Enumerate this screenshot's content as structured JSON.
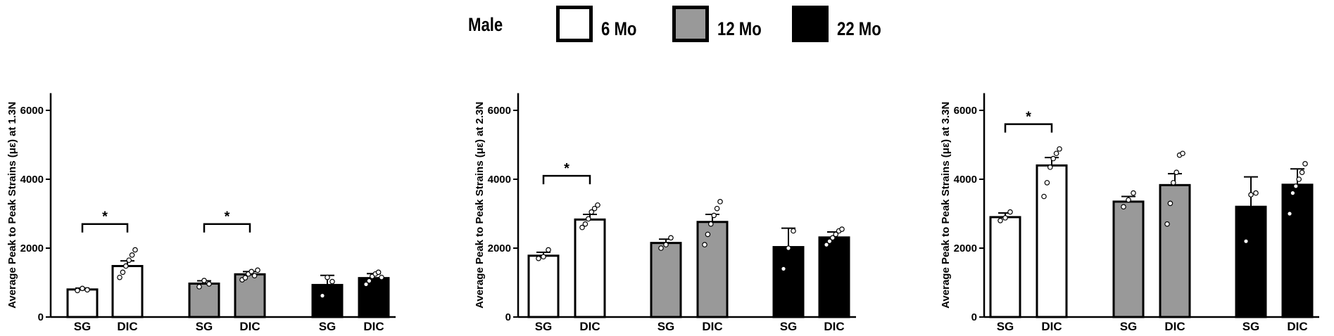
{
  "legend": {
    "title": "Male",
    "items": [
      {
        "label": "6 Mo",
        "color": "#ffffff"
      },
      {
        "label": "12 Mo",
        "color": "#999999"
      },
      {
        "label": "22 Mo",
        "color": "#000000"
      }
    ]
  },
  "chart_data": [
    {
      "type": "bar",
      "ylabel": "Average Peak to Peak Strains (με) at 1.3N",
      "ylim": [
        0,
        6500
      ],
      "yticks": [
        0,
        2000,
        4000,
        6000
      ],
      "categories": [
        "SG",
        "DIC",
        "SG",
        "DIC",
        "SG",
        "DIC"
      ],
      "group_of_bar": [
        "6 Mo",
        "6 Mo",
        "12 Mo",
        "12 Mo",
        "22 Mo",
        "22 Mo"
      ],
      "values": [
        800,
        1480,
        970,
        1240,
        930,
        1130
      ],
      "errors": [
        40,
        150,
        80,
        80,
        280,
        130
      ],
      "points": [
        [
          770,
          830,
          790
        ],
        [
          1150,
          1300,
          1480,
          1650,
          1800,
          1950
        ],
        [
          880,
          1060,
          960
        ],
        [
          1080,
          1140,
          1250,
          1320,
          1200,
          1360
        ],
        [
          620,
          1150,
          1030
        ],
        [
          950,
          1050,
          1180,
          1250,
          1300,
          1150
        ]
      ],
      "significance": [
        {
          "bars": [
            0,
            1
          ],
          "label": "*",
          "y": 2700
        },
        {
          "bars": [
            2,
            3
          ],
          "label": "*",
          "y": 2700
        }
      ]
    },
    {
      "type": "bar",
      "ylabel": "Average Peak to Peak Strains (με) at 2.3N",
      "ylim": [
        0,
        6500
      ],
      "yticks": [
        0,
        2000,
        4000,
        6000
      ],
      "categories": [
        "SG",
        "DIC",
        "SG",
        "DIC",
        "SG",
        "DIC"
      ],
      "group_of_bar": [
        "6 Mo",
        "6 Mo",
        "12 Mo",
        "12 Mo",
        "22 Mo",
        "22 Mo"
      ],
      "values": [
        1780,
        2830,
        2150,
        2760,
        2030,
        2310
      ],
      "errors": [
        100,
        150,
        110,
        220,
        550,
        160
      ],
      "points": [
        [
          1700,
          1750,
          1950
        ],
        [
          2600,
          2700,
          2850,
          3050,
          3150,
          3250
        ],
        [
          2000,
          2100,
          2300
        ],
        [
          2100,
          2400,
          2700,
          2950,
          3150,
          3350
        ],
        [
          1400,
          2000,
          2500
        ],
        [
          2100,
          2200,
          2300,
          2400,
          2500,
          2550
        ]
      ],
      "significance": [
        {
          "bars": [
            0,
            1
          ],
          "label": "*",
          "y": 4100
        }
      ]
    },
    {
      "type": "bar",
      "ylabel": "Average Peak to Peak Strains (με) at 3.3N",
      "ylim": [
        0,
        6500
      ],
      "yticks": [
        0,
        2000,
        4000,
        6000
      ],
      "categories": [
        "SG",
        "DIC",
        "SG",
        "DIC",
        "SG",
        "DIC"
      ],
      "group_of_bar": [
        "6 Mo",
        "6 Mo",
        "12 Mo",
        "12 Mo",
        "22 Mo",
        "22 Mo"
      ],
      "values": [
        2900,
        4400,
        3350,
        3830,
        3200,
        3840
      ],
      "errors": [
        120,
        230,
        150,
        330,
        870,
        460
      ],
      "points": [
        [
          2800,
          2880,
          3050
        ],
        [
          3500,
          3900,
          4350,
          4600,
          4750,
          4880
        ],
        [
          3200,
          3400,
          3600
        ],
        [
          2700,
          3300,
          3900,
          4200,
          4700,
          4750
        ],
        [
          2200,
          3550,
          3600
        ],
        [
          3000,
          3600,
          3800,
          4000,
          4200,
          4450
        ]
      ],
      "significance": [
        {
          "bars": [
            0,
            1
          ],
          "label": "*",
          "y": 5600
        }
      ]
    }
  ]
}
